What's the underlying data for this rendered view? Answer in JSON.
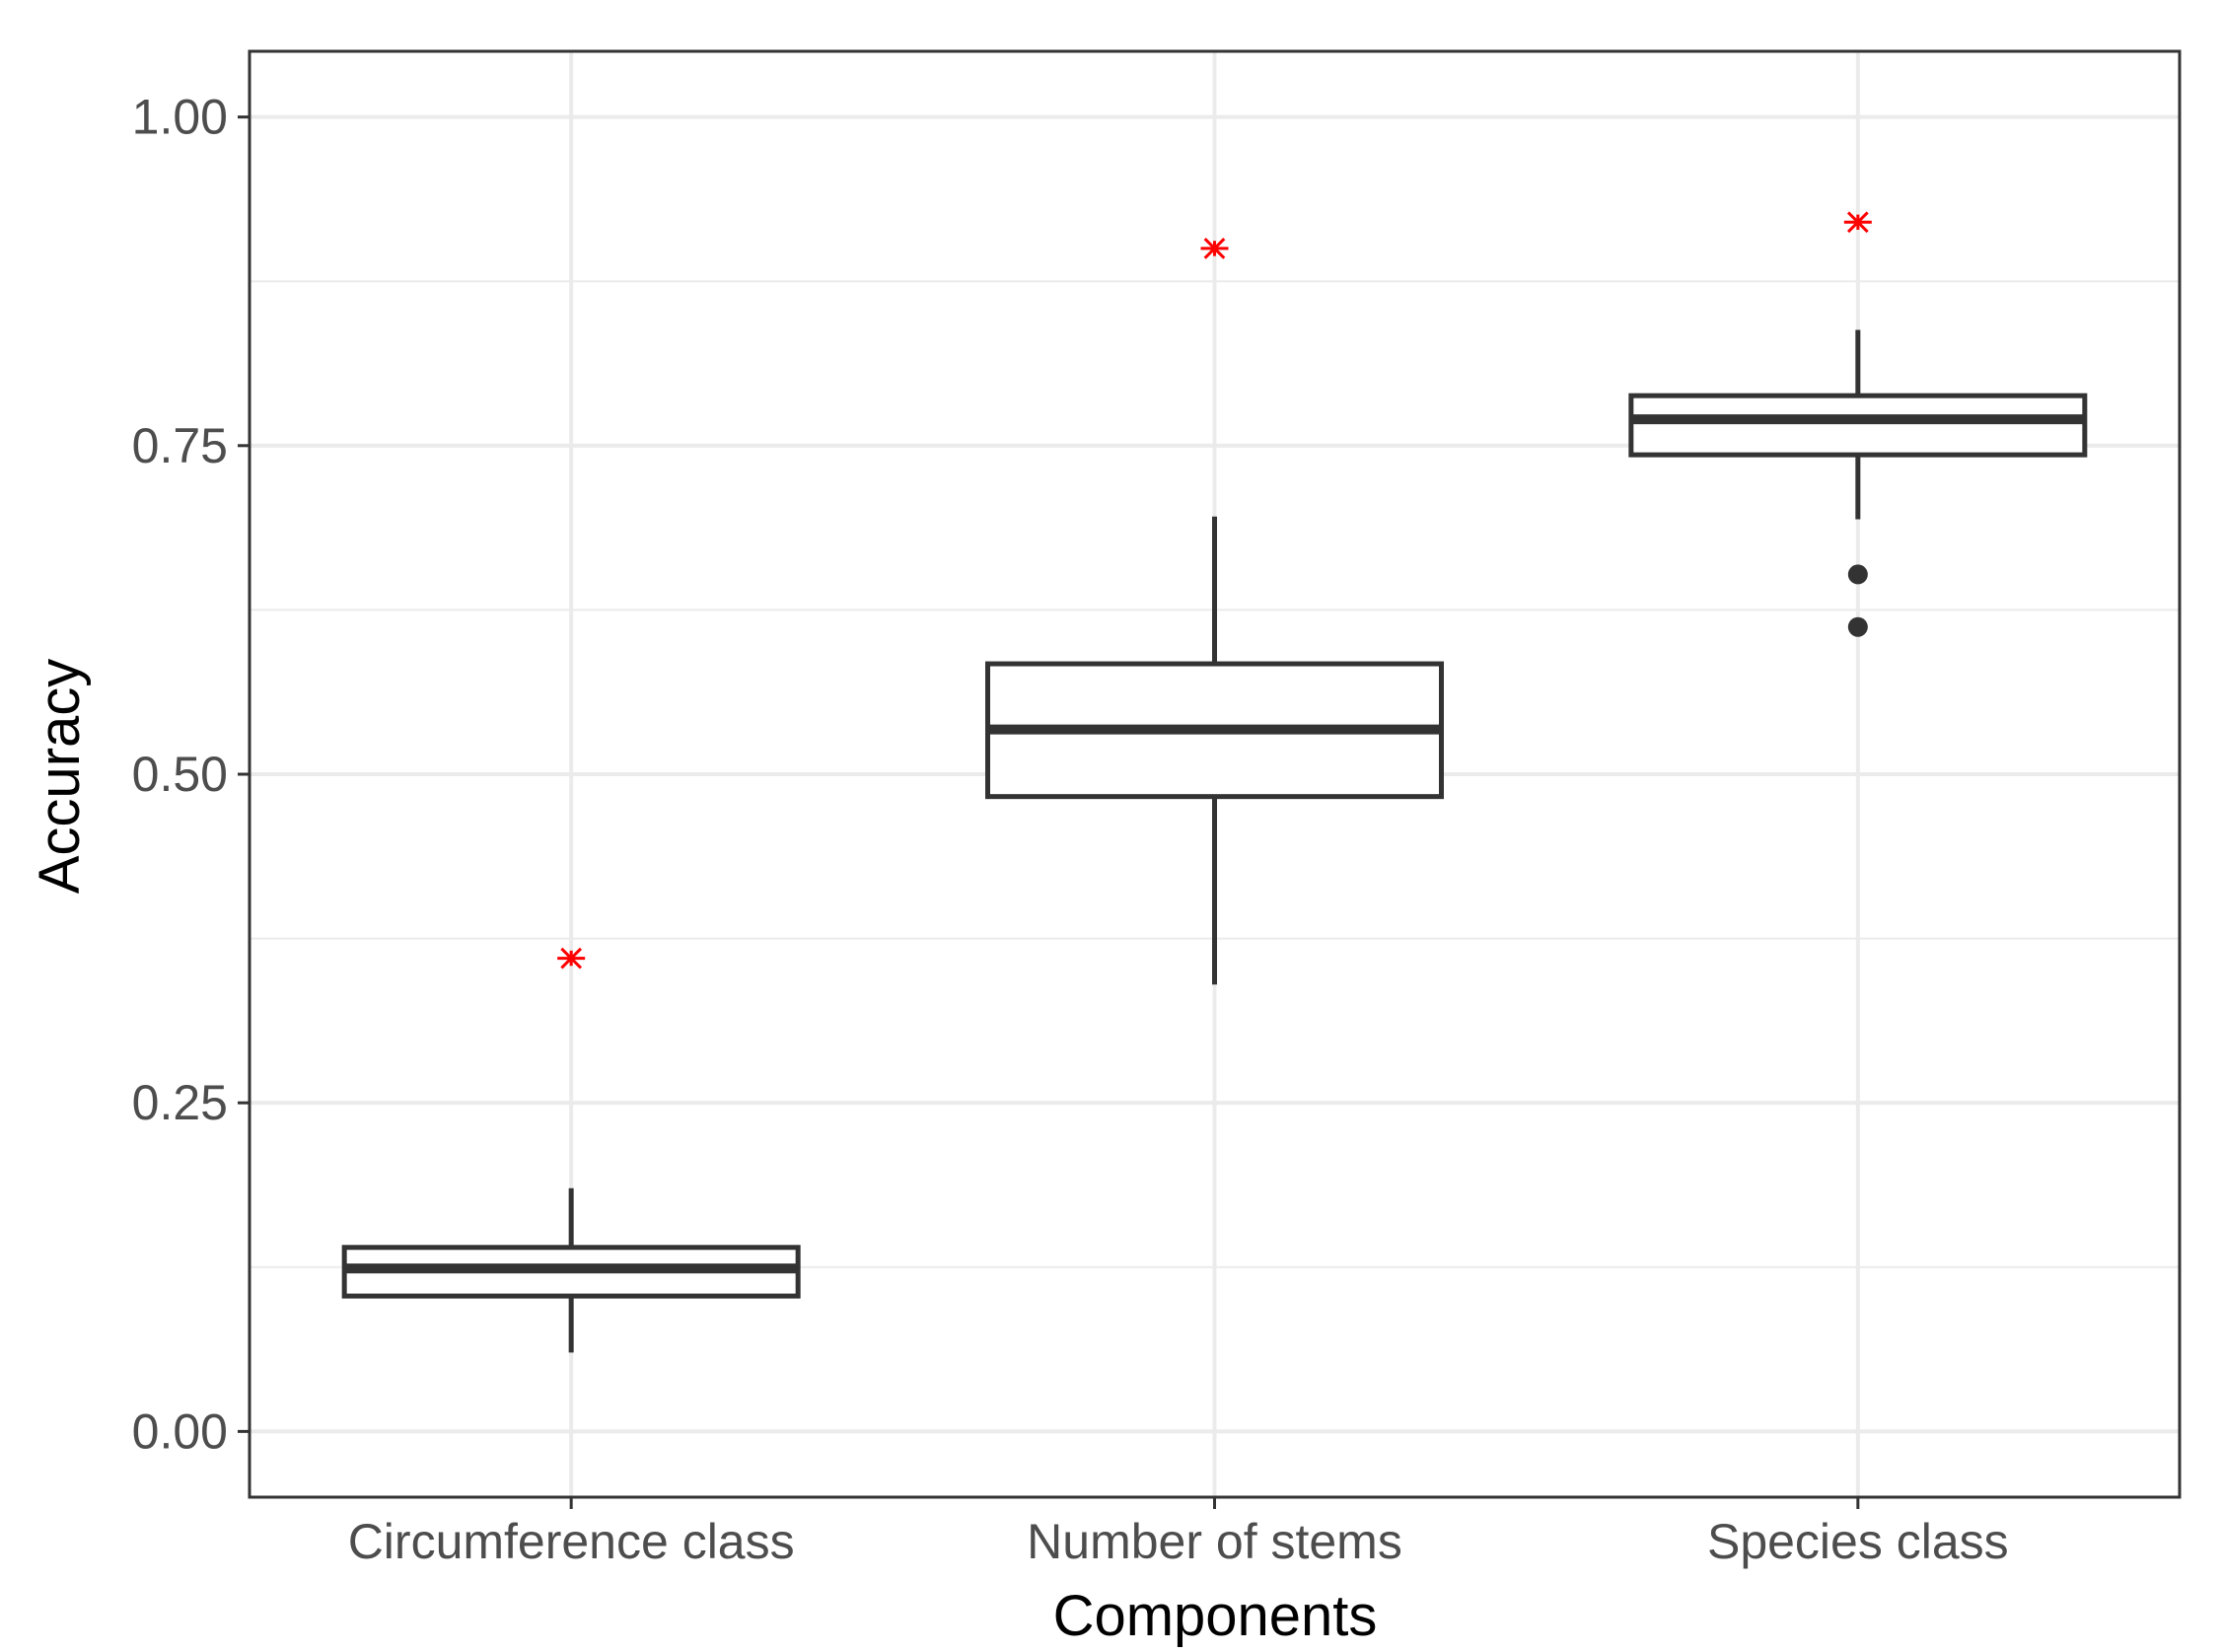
{
  "chart_data": {
    "type": "boxplot",
    "title": "",
    "xlabel": "Components",
    "ylabel": "Accuracy",
    "ylim": [
      -0.05,
      1.05
    ],
    "yticks": [
      0.0,
      0.25,
      0.5,
      0.75,
      1.0
    ],
    "ytick_labels": [
      "0.00",
      "0.25",
      "0.50",
      "0.75",
      "1.00"
    ],
    "grid": true,
    "categories": [
      "Circumference class",
      "Number of stems",
      "Species class"
    ],
    "boxes": [
      {
        "category": "Circumference class",
        "whisker_low": 0.06,
        "q1": 0.103,
        "median": 0.124,
        "q3": 0.14,
        "whisker_high": 0.185,
        "outliers": []
      },
      {
        "category": "Number of stems",
        "whisker_low": 0.34,
        "q1": 0.483,
        "median": 0.534,
        "q3": 0.584,
        "whisker_high": 0.696,
        "outliers": []
      },
      {
        "category": "Species class",
        "whisker_low": 0.694,
        "q1": 0.743,
        "median": 0.77,
        "q3": 0.788,
        "whisker_high": 0.838,
        "outliers": [
          0.652,
          0.612
        ]
      }
    ],
    "reference_points": {
      "marker": "asterisk",
      "color": "#ff0000",
      "values": [
        0.36,
        0.9,
        0.92
      ]
    },
    "colors": {
      "box_stroke": "#333333",
      "grid": "#ebebeb",
      "panel_border": "#333333",
      "tick_text": "#4d4d4d"
    }
  }
}
